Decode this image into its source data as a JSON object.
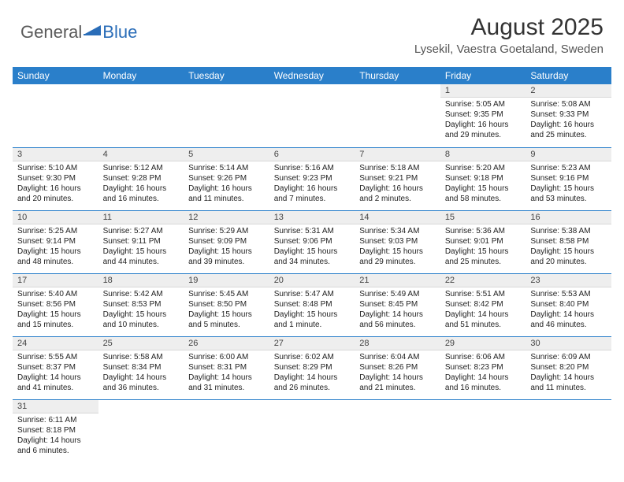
{
  "logo": {
    "text1": "General",
    "text2": "Blue"
  },
  "title": "August 2025",
  "location": "Lysekil, Vaestra Goetaland, Sweden",
  "colors": {
    "header_bg": "#2a7fca",
    "header_text": "#ffffff",
    "daynum_bg": "#eeeeee",
    "row_border": "#2a7fca",
    "logo_gray": "#5a5a5a",
    "logo_blue": "#2a6db8"
  },
  "weekdays": [
    "Sunday",
    "Monday",
    "Tuesday",
    "Wednesday",
    "Thursday",
    "Friday",
    "Saturday"
  ],
  "weeks": [
    [
      {
        "empty": true
      },
      {
        "empty": true
      },
      {
        "empty": true
      },
      {
        "empty": true
      },
      {
        "empty": true
      },
      {
        "day": "1",
        "sunrise": "Sunrise: 5:05 AM",
        "sunset": "Sunset: 9:35 PM",
        "daylight": "Daylight: 16 hours and 29 minutes."
      },
      {
        "day": "2",
        "sunrise": "Sunrise: 5:08 AM",
        "sunset": "Sunset: 9:33 PM",
        "daylight": "Daylight: 16 hours and 25 minutes."
      }
    ],
    [
      {
        "day": "3",
        "sunrise": "Sunrise: 5:10 AM",
        "sunset": "Sunset: 9:30 PM",
        "daylight": "Daylight: 16 hours and 20 minutes."
      },
      {
        "day": "4",
        "sunrise": "Sunrise: 5:12 AM",
        "sunset": "Sunset: 9:28 PM",
        "daylight": "Daylight: 16 hours and 16 minutes."
      },
      {
        "day": "5",
        "sunrise": "Sunrise: 5:14 AM",
        "sunset": "Sunset: 9:26 PM",
        "daylight": "Daylight: 16 hours and 11 minutes."
      },
      {
        "day": "6",
        "sunrise": "Sunrise: 5:16 AM",
        "sunset": "Sunset: 9:23 PM",
        "daylight": "Daylight: 16 hours and 7 minutes."
      },
      {
        "day": "7",
        "sunrise": "Sunrise: 5:18 AM",
        "sunset": "Sunset: 9:21 PM",
        "daylight": "Daylight: 16 hours and 2 minutes."
      },
      {
        "day": "8",
        "sunrise": "Sunrise: 5:20 AM",
        "sunset": "Sunset: 9:18 PM",
        "daylight": "Daylight: 15 hours and 58 minutes."
      },
      {
        "day": "9",
        "sunrise": "Sunrise: 5:23 AM",
        "sunset": "Sunset: 9:16 PM",
        "daylight": "Daylight: 15 hours and 53 minutes."
      }
    ],
    [
      {
        "day": "10",
        "sunrise": "Sunrise: 5:25 AM",
        "sunset": "Sunset: 9:14 PM",
        "daylight": "Daylight: 15 hours and 48 minutes."
      },
      {
        "day": "11",
        "sunrise": "Sunrise: 5:27 AM",
        "sunset": "Sunset: 9:11 PM",
        "daylight": "Daylight: 15 hours and 44 minutes."
      },
      {
        "day": "12",
        "sunrise": "Sunrise: 5:29 AM",
        "sunset": "Sunset: 9:09 PM",
        "daylight": "Daylight: 15 hours and 39 minutes."
      },
      {
        "day": "13",
        "sunrise": "Sunrise: 5:31 AM",
        "sunset": "Sunset: 9:06 PM",
        "daylight": "Daylight: 15 hours and 34 minutes."
      },
      {
        "day": "14",
        "sunrise": "Sunrise: 5:34 AM",
        "sunset": "Sunset: 9:03 PM",
        "daylight": "Daylight: 15 hours and 29 minutes."
      },
      {
        "day": "15",
        "sunrise": "Sunrise: 5:36 AM",
        "sunset": "Sunset: 9:01 PM",
        "daylight": "Daylight: 15 hours and 25 minutes."
      },
      {
        "day": "16",
        "sunrise": "Sunrise: 5:38 AM",
        "sunset": "Sunset: 8:58 PM",
        "daylight": "Daylight: 15 hours and 20 minutes."
      }
    ],
    [
      {
        "day": "17",
        "sunrise": "Sunrise: 5:40 AM",
        "sunset": "Sunset: 8:56 PM",
        "daylight": "Daylight: 15 hours and 15 minutes."
      },
      {
        "day": "18",
        "sunrise": "Sunrise: 5:42 AM",
        "sunset": "Sunset: 8:53 PM",
        "daylight": "Daylight: 15 hours and 10 minutes."
      },
      {
        "day": "19",
        "sunrise": "Sunrise: 5:45 AM",
        "sunset": "Sunset: 8:50 PM",
        "daylight": "Daylight: 15 hours and 5 minutes."
      },
      {
        "day": "20",
        "sunrise": "Sunrise: 5:47 AM",
        "sunset": "Sunset: 8:48 PM",
        "daylight": "Daylight: 15 hours and 1 minute."
      },
      {
        "day": "21",
        "sunrise": "Sunrise: 5:49 AM",
        "sunset": "Sunset: 8:45 PM",
        "daylight": "Daylight: 14 hours and 56 minutes."
      },
      {
        "day": "22",
        "sunrise": "Sunrise: 5:51 AM",
        "sunset": "Sunset: 8:42 PM",
        "daylight": "Daylight: 14 hours and 51 minutes."
      },
      {
        "day": "23",
        "sunrise": "Sunrise: 5:53 AM",
        "sunset": "Sunset: 8:40 PM",
        "daylight": "Daylight: 14 hours and 46 minutes."
      }
    ],
    [
      {
        "day": "24",
        "sunrise": "Sunrise: 5:55 AM",
        "sunset": "Sunset: 8:37 PM",
        "daylight": "Daylight: 14 hours and 41 minutes."
      },
      {
        "day": "25",
        "sunrise": "Sunrise: 5:58 AM",
        "sunset": "Sunset: 8:34 PM",
        "daylight": "Daylight: 14 hours and 36 minutes."
      },
      {
        "day": "26",
        "sunrise": "Sunrise: 6:00 AM",
        "sunset": "Sunset: 8:31 PM",
        "daylight": "Daylight: 14 hours and 31 minutes."
      },
      {
        "day": "27",
        "sunrise": "Sunrise: 6:02 AM",
        "sunset": "Sunset: 8:29 PM",
        "daylight": "Daylight: 14 hours and 26 minutes."
      },
      {
        "day": "28",
        "sunrise": "Sunrise: 6:04 AM",
        "sunset": "Sunset: 8:26 PM",
        "daylight": "Daylight: 14 hours and 21 minutes."
      },
      {
        "day": "29",
        "sunrise": "Sunrise: 6:06 AM",
        "sunset": "Sunset: 8:23 PM",
        "daylight": "Daylight: 14 hours and 16 minutes."
      },
      {
        "day": "30",
        "sunrise": "Sunrise: 6:09 AM",
        "sunset": "Sunset: 8:20 PM",
        "daylight": "Daylight: 14 hours and 11 minutes."
      }
    ],
    [
      {
        "day": "31",
        "sunrise": "Sunrise: 6:11 AM",
        "sunset": "Sunset: 8:18 PM",
        "daylight": "Daylight: 14 hours and 6 minutes."
      },
      {
        "empty": true
      },
      {
        "empty": true
      },
      {
        "empty": true
      },
      {
        "empty": true
      },
      {
        "empty": true
      },
      {
        "empty": true
      }
    ]
  ]
}
